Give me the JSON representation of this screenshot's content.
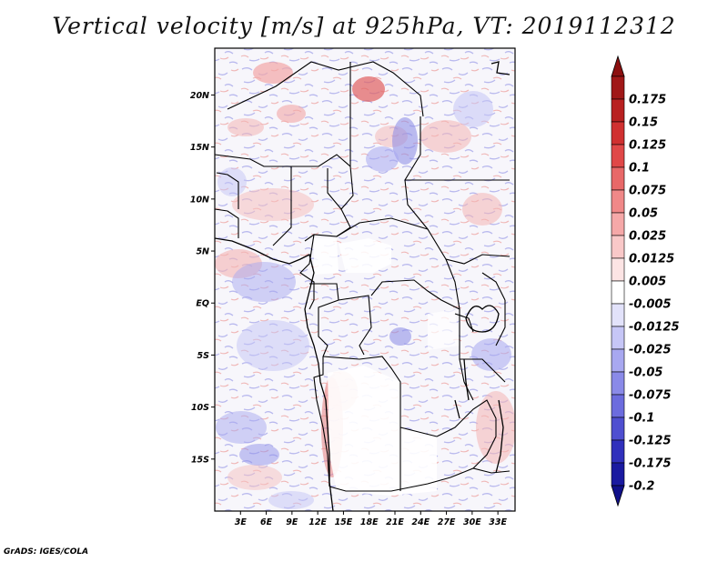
{
  "title": "Vertical velocity [m/s] at 925hPa, VT: 2019112312",
  "credit": "GrADS: IGES/COLA",
  "map": {
    "lon_range": [
      0,
      35
    ],
    "lat_range": [
      -20,
      24.5
    ],
    "lat_ticks": [
      {
        "value": 20,
        "label": "20N"
      },
      {
        "value": 15,
        "label": "15N"
      },
      {
        "value": 10,
        "label": "10N"
      },
      {
        "value": 5,
        "label": "5N"
      },
      {
        "value": 0,
        "label": "EQ"
      },
      {
        "value": -5,
        "label": "5S"
      },
      {
        "value": -10,
        "label": "10S"
      },
      {
        "value": -15,
        "label": "15S"
      }
    ],
    "lon_ticks": [
      {
        "value": 3,
        "label": "3E"
      },
      {
        "value": 6,
        "label": "6E"
      },
      {
        "value": 9,
        "label": "9E"
      },
      {
        "value": 12,
        "label": "12E"
      },
      {
        "value": 15,
        "label": "15E"
      },
      {
        "value": 18,
        "label": "18E"
      },
      {
        "value": 21,
        "label": "21E"
      },
      {
        "value": 24,
        "label": "24E"
      },
      {
        "value": 27,
        "label": "27E"
      },
      {
        "value": 30,
        "label": "30E"
      },
      {
        "value": 33,
        "label": "33E"
      }
    ]
  },
  "colorbar": {
    "levels": [
      {
        "label": "0.175",
        "color": "#a01818"
      },
      {
        "label": "0.15",
        "color": "#b82020"
      },
      {
        "label": "0.125",
        "color": "#d03030"
      },
      {
        "label": "0.1",
        "color": "#e04848"
      },
      {
        "label": "0.075",
        "color": "#e86868"
      },
      {
        "label": "0.05",
        "color": "#f08888"
      },
      {
        "label": "0.025",
        "color": "#f5a8a8"
      },
      {
        "label": "0.0125",
        "color": "#f9c8c8"
      },
      {
        "label": "0.005",
        "color": "#fce4e4"
      },
      {
        "label": "-0.005",
        "color": "#ffffff"
      },
      {
        "label": "-0.0125",
        "color": "#e2e2fa"
      },
      {
        "label": "-0.025",
        "color": "#c6c6f6"
      },
      {
        "label": "-0.05",
        "color": "#a8a8f0"
      },
      {
        "label": "-0.075",
        "color": "#8a8ae8"
      },
      {
        "label": "-0.1",
        "color": "#6c6cde"
      },
      {
        "label": "-0.125",
        "color": "#4f4fd0"
      },
      {
        "label": "-0.175",
        "color": "#3030bc"
      },
      {
        "label": "-0.2",
        "color": "#1a1aa0"
      }
    ],
    "top_arrow_color": "#8c1010",
    "bottom_arrow_color": "#10108a"
  }
}
